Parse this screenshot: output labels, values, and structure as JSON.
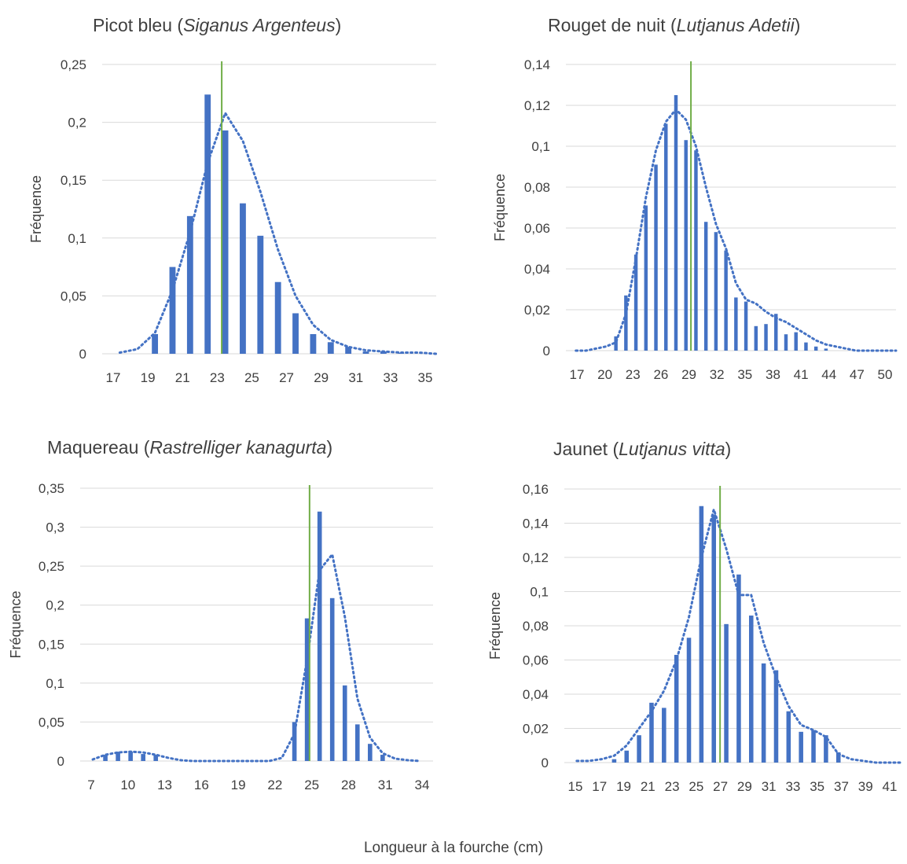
{
  "xlabel": "Longueur à la fourche (cm)",
  "colors": {
    "bar": "#4472C4",
    "trend": "#4472C4",
    "mean_line": "#70AD47",
    "grid": "#D9D9D9"
  },
  "chart_data": [
    {
      "type": "bar",
      "title": "Picot bleu (",
      "title_italic": "Siganus Argenteus",
      "title_end": ")",
      "ylabel": "Fréquence",
      "ylim": [
        0,
        0.25
      ],
      "yticks": [
        "0",
        "0,05",
        "0,1",
        "0,15",
        "0,2",
        "0,25"
      ],
      "xlim": [
        17,
        36
      ],
      "xtick_labels": [
        "17",
        "19",
        "21",
        "23",
        "25",
        "27",
        "29",
        "31",
        "33",
        "35"
      ],
      "series": [
        {
          "x": [
            20,
            21,
            22,
            23,
            24,
            25,
            26,
            27,
            28,
            29,
            30,
            31,
            32,
            33,
            34
          ],
          "values": [
            0.017,
            0.075,
            0.119,
            0.224,
            0.193,
            0.13,
            0.102,
            0.062,
            0.035,
            0.017,
            0.01,
            0.006,
            0.002,
            0.002,
            0.001
          ]
        }
      ],
      "trendline": {
        "x": [
          18,
          19,
          20,
          21,
          22,
          23,
          24,
          25,
          26,
          27,
          28,
          29,
          30,
          31,
          32,
          33,
          34,
          35,
          36
        ],
        "y": [
          0.001,
          0.004,
          0.018,
          0.055,
          0.105,
          0.165,
          0.208,
          0.184,
          0.14,
          0.09,
          0.05,
          0.025,
          0.012,
          0.006,
          0.003,
          0.002,
          0.001,
          0.001,
          0.0
        ]
      },
      "mean_line_x": 23.8,
      "grid": true
    },
    {
      "type": "bar",
      "title": "Rouget de nuit (",
      "title_italic": "Lutjanus Adetii",
      "title_end": ")",
      "ylabel": "Fréquence",
      "ylim": [
        0,
        0.14
      ],
      "yticks": [
        "0",
        "0,02",
        "0,04",
        "0,06",
        "0,08",
        "0,1",
        "0,12",
        "0,14"
      ],
      "xlim": [
        17,
        50
      ],
      "xtick_labels": [
        "17",
        "20",
        "23",
        "26",
        "29",
        "32",
        "35",
        "38",
        "41",
        "44",
        "47",
        "50"
      ],
      "series": [
        {
          "x": [
            22,
            23,
            24,
            25,
            26,
            27,
            28,
            29,
            30,
            31,
            32,
            33,
            34,
            35,
            36,
            37,
            38,
            39,
            40,
            41,
            42,
            43
          ],
          "values": [
            0.007,
            0.027,
            0.047,
            0.071,
            0.091,
            0.111,
            0.125,
            0.103,
            0.098,
            0.063,
            0.058,
            0.049,
            0.026,
            0.024,
            0.012,
            0.013,
            0.018,
            0.008,
            0.009,
            0.004,
            0.002,
            0.001
          ]
        }
      ],
      "trendline": {
        "x": [
          18,
          19,
          20,
          21,
          22,
          23,
          24,
          25,
          26,
          27,
          28,
          29,
          30,
          31,
          32,
          33,
          34,
          35,
          36,
          37,
          38,
          39,
          40,
          41,
          42,
          43,
          44,
          45,
          46,
          47,
          48,
          49,
          50
        ],
        "y": [
          0.0,
          0.0,
          0.001,
          0.002,
          0.004,
          0.018,
          0.045,
          0.075,
          0.098,
          0.112,
          0.118,
          0.113,
          0.1,
          0.08,
          0.062,
          0.05,
          0.033,
          0.025,
          0.023,
          0.019,
          0.016,
          0.014,
          0.011,
          0.008,
          0.005,
          0.003,
          0.002,
          0.001,
          0.0,
          0.0,
          0.0,
          0.0,
          0.0
        ]
      },
      "mean_line_x": 29.5,
      "grid": true
    },
    {
      "type": "bar",
      "title": "Maquereau (",
      "title_italic": "Rastrelliger kanagurta",
      "title_end": ")",
      "ylabel": "Fréquence",
      "ylim": [
        0,
        0.35
      ],
      "yticks": [
        "0",
        "0,05",
        "0,1",
        "0,15",
        "0,2",
        "0,25",
        "0,3",
        "0,35"
      ],
      "xlim": [
        7,
        35
      ],
      "xtick_labels": [
        "7",
        "10",
        "13",
        "16",
        "19",
        "22",
        "25",
        "28",
        "31",
        "34"
      ],
      "series": [
        {
          "x": [
            9,
            10,
            11,
            12,
            13,
            24,
            25,
            26,
            27,
            28,
            29,
            30,
            31
          ],
          "values": [
            0.008,
            0.012,
            0.012,
            0.009,
            0.008,
            0.05,
            0.183,
            0.32,
            0.209,
            0.097,
            0.047,
            0.022,
            0.008
          ]
        }
      ],
      "trendline": {
        "x": [
          8,
          9,
          10,
          11,
          12,
          13,
          14,
          15,
          16,
          17,
          18,
          19,
          20,
          21,
          22,
          23,
          24,
          25,
          26,
          27,
          28,
          29,
          30,
          31,
          32,
          33,
          34
        ],
        "y": [
          0.002,
          0.008,
          0.011,
          0.012,
          0.011,
          0.008,
          0.004,
          0.001,
          0.0,
          0.0,
          0.0,
          0.0,
          0.0,
          0.0,
          0.0,
          0.004,
          0.035,
          0.13,
          0.245,
          0.265,
          0.185,
          0.08,
          0.03,
          0.01,
          0.003,
          0.001,
          0.0
        ]
      },
      "mean_line_x": 25.2,
      "grid": true
    },
    {
      "type": "bar",
      "title": "Jaunet (",
      "title_italic": "Lutjanus vitta",
      "title_end": ")",
      "ylabel": "Fréquence",
      "ylim": [
        0,
        0.16
      ],
      "yticks": [
        "0",
        "0,02",
        "0,04",
        "0,06",
        "0,08",
        "0,1",
        "0,12",
        "0,14",
        "0,16"
      ],
      "xlim": [
        15,
        42
      ],
      "xtick_labels": [
        "15",
        "17",
        "19",
        "21",
        "23",
        "25",
        "27",
        "29",
        "31",
        "33",
        "35",
        "37",
        "39",
        "41"
      ],
      "series": [
        {
          "x": [
            19,
            20,
            21,
            22,
            23,
            24,
            25,
            26,
            27,
            28,
            29,
            30,
            31,
            32,
            33,
            34,
            35,
            36,
            37
          ],
          "values": [
            0.002,
            0.007,
            0.016,
            0.035,
            0.032,
            0.063,
            0.073,
            0.15,
            0.145,
            0.081,
            0.11,
            0.086,
            0.058,
            0.054,
            0.03,
            0.018,
            0.019,
            0.016,
            0.006
          ]
        }
      ],
      "trendline": {
        "x": [
          16,
          17,
          18,
          19,
          20,
          21,
          22,
          23,
          24,
          25,
          26,
          27,
          28,
          29,
          30,
          31,
          32,
          33,
          34,
          35,
          36,
          37,
          38,
          39,
          40,
          41,
          42
        ],
        "y": [
          0.001,
          0.001,
          0.002,
          0.004,
          0.01,
          0.02,
          0.03,
          0.042,
          0.06,
          0.085,
          0.12,
          0.148,
          0.125,
          0.098,
          0.098,
          0.07,
          0.05,
          0.033,
          0.022,
          0.019,
          0.015,
          0.005,
          0.002,
          0.001,
          0.0,
          0.0,
          0.0
        ]
      },
      "mean_line_x": 27.5,
      "grid": true
    }
  ]
}
